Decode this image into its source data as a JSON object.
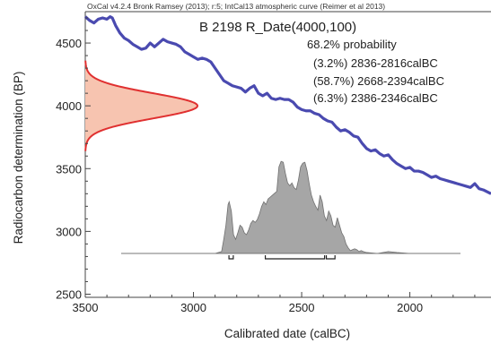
{
  "chart_data": {
    "type": "line",
    "header": "OxCal v4.2.4 Bronk Ramsey (2013); r:5; IntCal13 atmospheric curve (Reimer et al 2013)",
    "title": "B 2198 R_Date(4000,100)",
    "xlabel": "Calibrated date (calBC)",
    "ylabel": "Radiocarbon determination (BP)",
    "xlim": [
      3500,
      1625
    ],
    "ylim": [
      2475,
      4750
    ],
    "x_ticks": [
      3500,
      3000,
      2500,
      2000
    ],
    "y_ticks": [
      2500,
      3000,
      3500,
      4000,
      4500
    ],
    "x_tick_labels": [
      "3500",
      "3000",
      "2500",
      "2000"
    ],
    "y_tick_labels": [
      "2500",
      "3000",
      "3500",
      "4000",
      "4500"
    ],
    "probability": {
      "heading": "68.2% probability",
      "ranges": [
        {
          "label": "(3.2%) 2836-2816calBC",
          "from": 2836,
          "to": 2816,
          "pct": 3.2
        },
        {
          "label": "(58.7%) 2668-2394calBC",
          "from": 2668,
          "to": 2394,
          "pct": 58.7
        },
        {
          "label": "(6.3%) 2386-2346calBC",
          "from": 2386,
          "to": 2346,
          "pct": 6.3
        }
      ]
    },
    "radiocarbon_date": {
      "mean": 4000,
      "sd": 100
    },
    "series": [
      {
        "kind": "calibration-curve",
        "color": "#4a4ab0",
        "points": [
          [
            3500,
            4710
          ],
          [
            3480,
            4680
          ],
          [
            3460,
            4660
          ],
          [
            3440,
            4690
          ],
          [
            3420,
            4700
          ],
          [
            3400,
            4690
          ],
          [
            3385,
            4710
          ],
          [
            3375,
            4700
          ],
          [
            3360,
            4640
          ],
          [
            3340,
            4580
          ],
          [
            3320,
            4540
          ],
          [
            3300,
            4520
          ],
          [
            3280,
            4490
          ],
          [
            3260,
            4470
          ],
          [
            3240,
            4450
          ],
          [
            3220,
            4460
          ],
          [
            3200,
            4500
          ],
          [
            3180,
            4470
          ],
          [
            3160,
            4500
          ],
          [
            3140,
            4530
          ],
          [
            3120,
            4510
          ],
          [
            3100,
            4500
          ],
          [
            3080,
            4490
          ],
          [
            3060,
            4470
          ],
          [
            3040,
            4430
          ],
          [
            3020,
            4410
          ],
          [
            3000,
            4390
          ],
          [
            2980,
            4370
          ],
          [
            2960,
            4380
          ],
          [
            2940,
            4370
          ],
          [
            2920,
            4350
          ],
          [
            2900,
            4300
          ],
          [
            2880,
            4250
          ],
          [
            2860,
            4200
          ],
          [
            2840,
            4180
          ],
          [
            2820,
            4160
          ],
          [
            2800,
            4150
          ],
          [
            2780,
            4140
          ],
          [
            2760,
            4110
          ],
          [
            2740,
            4140
          ],
          [
            2720,
            4160
          ],
          [
            2700,
            4100
          ],
          [
            2680,
            4080
          ],
          [
            2660,
            4100
          ],
          [
            2640,
            4060
          ],
          [
            2620,
            4050
          ],
          [
            2600,
            4060
          ],
          [
            2580,
            4050
          ],
          [
            2560,
            4050
          ],
          [
            2540,
            4030
          ],
          [
            2520,
            3990
          ],
          [
            2500,
            3970
          ],
          [
            2480,
            3960
          ],
          [
            2460,
            3960
          ],
          [
            2440,
            3940
          ],
          [
            2420,
            3930
          ],
          [
            2400,
            3900
          ],
          [
            2380,
            3880
          ],
          [
            2360,
            3870
          ],
          [
            2340,
            3830
          ],
          [
            2320,
            3800
          ],
          [
            2300,
            3810
          ],
          [
            2280,
            3790
          ],
          [
            2260,
            3760
          ],
          [
            2240,
            3750
          ],
          [
            2220,
            3700
          ],
          [
            2200,
            3660
          ],
          [
            2180,
            3640
          ],
          [
            2160,
            3650
          ],
          [
            2140,
            3620
          ],
          [
            2120,
            3600
          ],
          [
            2100,
            3610
          ],
          [
            2080,
            3570
          ],
          [
            2060,
            3540
          ],
          [
            2040,
            3520
          ],
          [
            2020,
            3500
          ],
          [
            2000,
            3510
          ],
          [
            1980,
            3480
          ],
          [
            1960,
            3480
          ],
          [
            1940,
            3470
          ],
          [
            1920,
            3450
          ],
          [
            1900,
            3430
          ],
          [
            1880,
            3440
          ],
          [
            1860,
            3420
          ],
          [
            1840,
            3410
          ],
          [
            1820,
            3400
          ],
          [
            1800,
            3390
          ],
          [
            1780,
            3380
          ],
          [
            1760,
            3370
          ],
          [
            1740,
            3360
          ],
          [
            1720,
            3350
          ],
          [
            1700,
            3380
          ],
          [
            1680,
            3340
          ],
          [
            1660,
            3330
          ],
          [
            1625,
            3300
          ]
        ]
      },
      {
        "kind": "calibrated-distribution",
        "color": "#999999",
        "points": [
          [
            2900,
            0
          ],
          [
            2870,
            0.02
          ],
          [
            2860,
            0.15
          ],
          [
            2850,
            0.3
          ],
          [
            2840,
            0.52
          ],
          [
            2835,
            0.55
          ],
          [
            2825,
            0.45
          ],
          [
            2815,
            0.2
          ],
          [
            2805,
            0.15
          ],
          [
            2795,
            0.22
          ],
          [
            2785,
            0.3
          ],
          [
            2775,
            0.28
          ],
          [
            2765,
            0.22
          ],
          [
            2755,
            0.2
          ],
          [
            2745,
            0.25
          ],
          [
            2735,
            0.32
          ],
          [
            2725,
            0.35
          ],
          [
            2715,
            0.33
          ],
          [
            2705,
            0.36
          ],
          [
            2695,
            0.42
          ],
          [
            2685,
            0.5
          ],
          [
            2675,
            0.55
          ],
          [
            2665,
            0.52
          ],
          [
            2655,
            0.58
          ],
          [
            2645,
            0.6
          ],
          [
            2635,
            0.62
          ],
          [
            2625,
            0.64
          ],
          [
            2615,
            0.66
          ],
          [
            2605,
            0.92
          ],
          [
            2595,
            0.98
          ],
          [
            2585,
            0.97
          ],
          [
            2575,
            0.85
          ],
          [
            2565,
            0.75
          ],
          [
            2555,
            0.72
          ],
          [
            2545,
            0.75
          ],
          [
            2535,
            0.7
          ],
          [
            2525,
            0.68
          ],
          [
            2515,
            0.78
          ],
          [
            2505,
            0.92
          ],
          [
            2495,
            0.96
          ],
          [
            2485,
            0.97
          ],
          [
            2475,
            0.88
          ],
          [
            2465,
            0.74
          ],
          [
            2455,
            0.62
          ],
          [
            2445,
            0.55
          ],
          [
            2435,
            0.5
          ],
          [
            2425,
            0.46
          ],
          [
            2415,
            0.62
          ],
          [
            2405,
            0.55
          ],
          [
            2395,
            0.4
          ],
          [
            2385,
            0.35
          ],
          [
            2375,
            0.45
          ],
          [
            2365,
            0.4
          ],
          [
            2355,
            0.3
          ],
          [
            2345,
            0.28
          ],
          [
            2335,
            0.38
          ],
          [
            2325,
            0.3
          ],
          [
            2315,
            0.22
          ],
          [
            2305,
            0.18
          ],
          [
            2295,
            0.1
          ],
          [
            2285,
            0.06
          ],
          [
            2275,
            0.03
          ],
          [
            2265,
            0.04
          ],
          [
            2255,
            0.05
          ],
          [
            2245,
            0.04
          ],
          [
            2235,
            0.02
          ],
          [
            2225,
            0.03
          ],
          [
            2215,
            0.02
          ],
          [
            2200,
            0.01
          ],
          [
            2150,
            0.0
          ],
          [
            2100,
            0.02
          ],
          [
            2060,
            0.01
          ],
          [
            2000,
            0
          ]
        ]
      }
    ],
    "colors": {
      "curve": "#4a4ab0",
      "radiocarbon_fill": "#f7c4b0",
      "radiocarbon_stroke": "#e03030",
      "distribution_fill": "#a6a6a6",
      "distribution_stroke": "#707070",
      "axis": "#444444"
    }
  }
}
